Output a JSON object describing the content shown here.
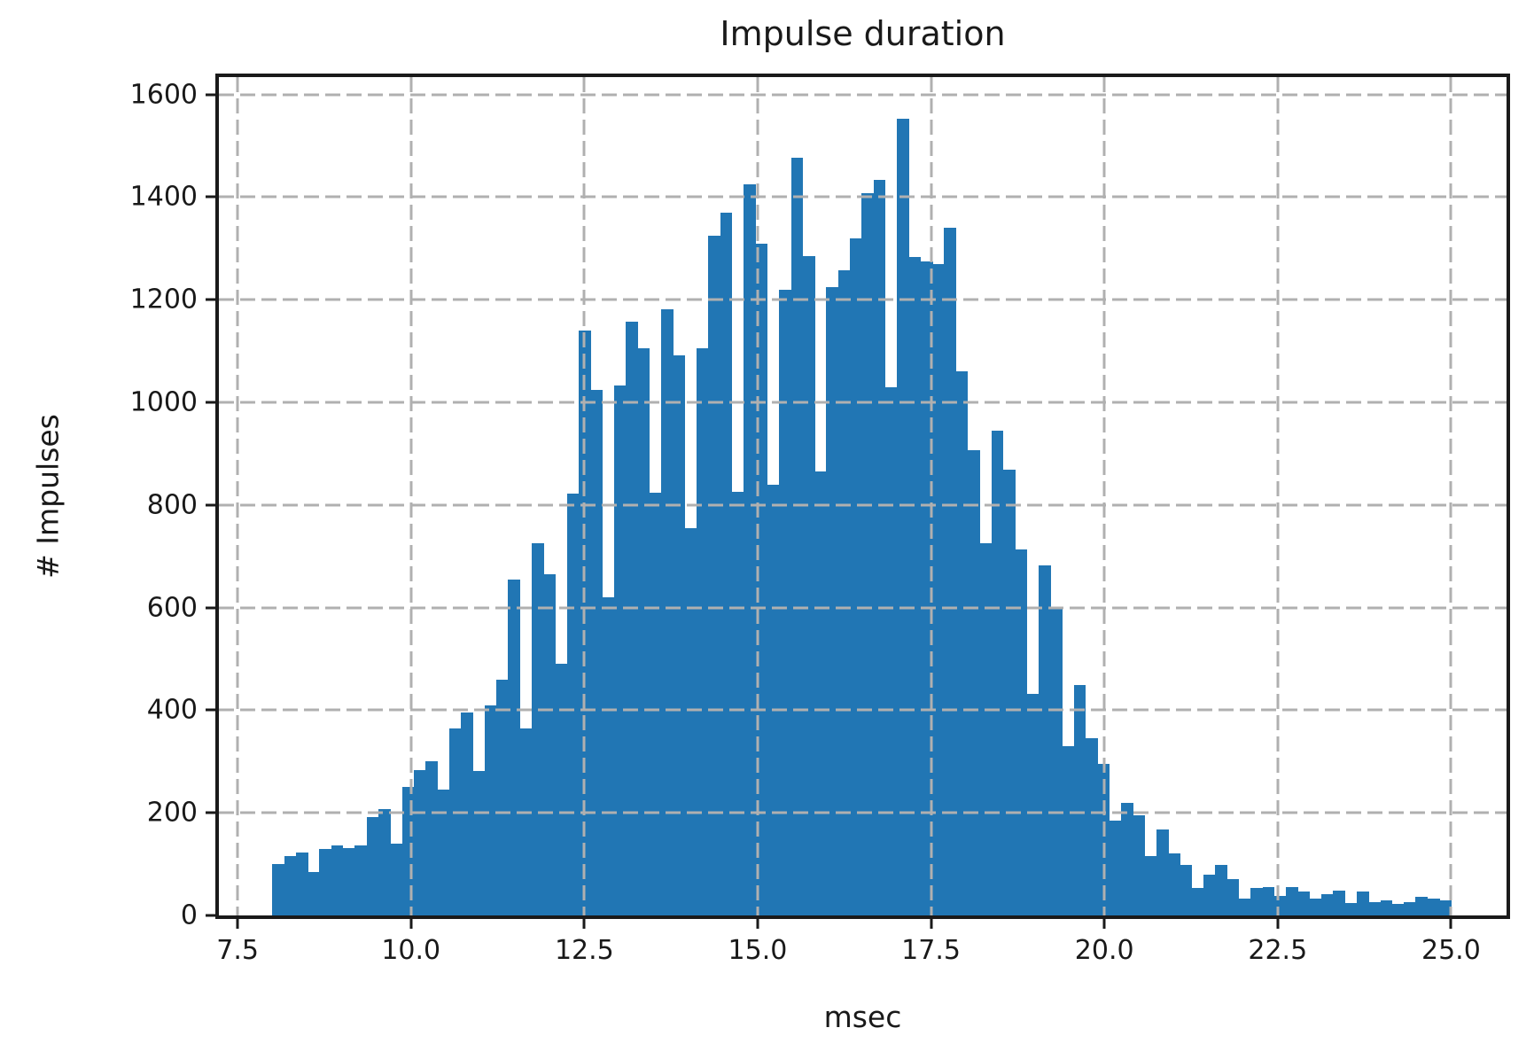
{
  "figure": {
    "title": "Impulse duration",
    "xlabel": "msec",
    "ylabel": "# Impulses"
  },
  "chart_data": {
    "type": "bar",
    "subtype": "histogram",
    "title": "Impulse duration",
    "xlabel": "msec",
    "ylabel": "# Impulses",
    "bin_start": 8.0,
    "bin_width": 0.17,
    "values": [
      100,
      115,
      123,
      85,
      130,
      137,
      132,
      137,
      192,
      207,
      140,
      250,
      283,
      300,
      245,
      365,
      395,
      282,
      410,
      460,
      655,
      365,
      725,
      665,
      490,
      822,
      1140,
      1025,
      620,
      1033,
      1157,
      1105,
      824,
      1182,
      1092,
      755,
      1105,
      1325,
      1370,
      825,
      1425,
      1310,
      840,
      1220,
      1477,
      1285,
      866,
      1225,
      1258,
      1319,
      1407,
      1433,
      1030,
      1553,
      1283,
      1275,
      1270,
      1340,
      1061,
      906,
      725,
      944,
      869,
      713,
      432,
      682,
      598,
      330,
      449,
      345,
      295,
      185,
      220,
      195,
      115,
      167,
      121,
      99,
      53,
      79,
      99,
      71,
      32,
      53,
      55,
      38,
      55,
      46,
      32,
      42,
      49,
      25,
      47,
      26,
      30,
      23,
      26,
      37,
      32,
      29
    ],
    "x_ticks": [
      {
        "value": 7.5,
        "label": "7.5"
      },
      {
        "value": 10.0,
        "label": "10.0"
      },
      {
        "value": 12.5,
        "label": "12.5"
      },
      {
        "value": 15.0,
        "label": "15.0"
      },
      {
        "value": 17.5,
        "label": "17.5"
      },
      {
        "value": 20.0,
        "label": "20.0"
      },
      {
        "value": 22.5,
        "label": "22.5"
      },
      {
        "value": 25.0,
        "label": "25.0"
      }
    ],
    "y_ticks": [
      {
        "value": 0,
        "label": "0"
      },
      {
        "value": 200,
        "label": "200"
      },
      {
        "value": 400,
        "label": "400"
      },
      {
        "value": 600,
        "label": "600"
      },
      {
        "value": 800,
        "label": "800"
      },
      {
        "value": 1000,
        "label": "1000"
      },
      {
        "value": 1200,
        "label": "1200"
      },
      {
        "value": 1400,
        "label": "1400"
      },
      {
        "value": 1600,
        "label": "1600"
      }
    ],
    "xlim": [
      7.23,
      25.8
    ],
    "ylim": [
      0,
      1634
    ],
    "grid": true,
    "grid_style": "dashed",
    "legend": null,
    "bar_color": "#2176b4",
    "grid_color": "#b0b0b0",
    "spine_color": "#1a1a1a",
    "text_color": "#191919"
  }
}
